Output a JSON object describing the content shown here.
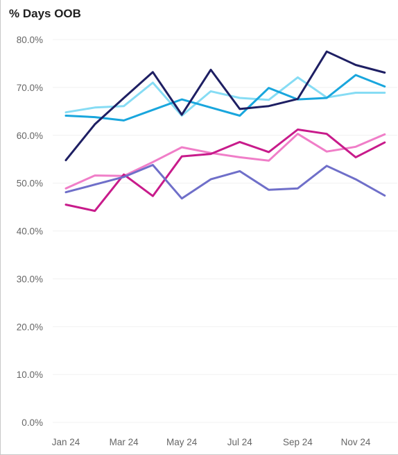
{
  "chart_data": {
    "type": "line",
    "title": "% Days OOB",
    "xlabel": "",
    "ylabel": "",
    "ylim": [
      0,
      80
    ],
    "yticks": [
      "0.0%",
      "10.0%",
      "20.0%",
      "30.0%",
      "40.0%",
      "50.0%",
      "60.0%",
      "70.0%",
      "80.0%"
    ],
    "x": [
      "Jan 24",
      "Feb 24",
      "Mar 24",
      "Apr 24",
      "May 24",
      "Jun 24",
      "Jul 24",
      "Aug 24",
      "Sep 24",
      "Oct 24",
      "Nov 24",
      "Dec 24"
    ],
    "xtick_labels": [
      "Jan 24",
      "Mar 24",
      "May 24",
      "Jul 24",
      "Sep 24",
      "Nov 24"
    ],
    "grid": true,
    "series": [
      {
        "color": "#86dcf4",
        "values": [
          64.8,
          65.8,
          66.1,
          71.0,
          64.1,
          69.2,
          67.8,
          67.4,
          72.1,
          67.9,
          68.9,
          68.9
        ]
      },
      {
        "color": "#19a6dd",
        "values": [
          64.1,
          63.8,
          63.1,
          65.3,
          67.5,
          65.8,
          64.1,
          69.9,
          67.5,
          67.8,
          72.6,
          70.2
        ]
      },
      {
        "color": "#1e1f63",
        "values": [
          54.8,
          62.3,
          67.8,
          73.2,
          64.3,
          73.7,
          65.5,
          66.1,
          67.6,
          77.5,
          74.7,
          73.1
        ]
      },
      {
        "color": "#f07ec8",
        "values": [
          48.9,
          51.6,
          51.5,
          54.4,
          57.5,
          56.3,
          55.4,
          54.7,
          60.3,
          56.6,
          57.6,
          60.2
        ]
      },
      {
        "color": "#c81b8b",
        "values": [
          45.5,
          44.2,
          51.8,
          47.3,
          55.6,
          56.1,
          58.6,
          56.5,
          61.2,
          60.3,
          55.4,
          58.5
        ]
      },
      {
        "color": "#6f6fc9",
        "values": [
          48.1,
          49.7,
          51.3,
          53.8,
          46.8,
          50.8,
          52.5,
          48.6,
          48.9,
          53.6,
          50.8,
          47.4
        ]
      }
    ]
  }
}
